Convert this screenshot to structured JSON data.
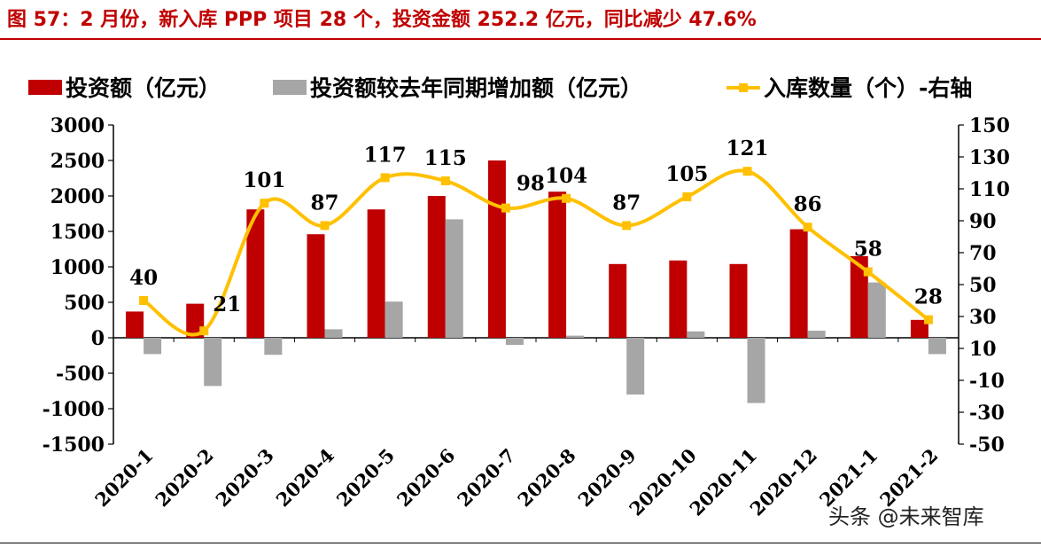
{
  "title": "图 57：2 月份，新入库 PPP 项目 28 个，投资金额 252.2 亿元，同比减少 47.6%",
  "watermark": "头条 @未来智库",
  "colors": {
    "invest": "#c00000",
    "yoy": "#a6a6a6",
    "count": "#ffc000",
    "title": "#c00000"
  },
  "chart_data": {
    "type": "bar",
    "categories": [
      "2020-1",
      "2020-2",
      "2020-3",
      "2020-4",
      "2020-5",
      "2020-6",
      "2020-7",
      "2020-8",
      "2020-9",
      "2020-10",
      "2020-11",
      "2020-12",
      "2021-1",
      "2021-2"
    ],
    "series": [
      {
        "name": "投资额（亿元）",
        "type": "bar",
        "axis": "left",
        "values": [
          370,
          480,
          1810,
          1460,
          1810,
          2000,
          2500,
          2060,
          1040,
          1090,
          1040,
          1530,
          1150,
          252.2
        ]
      },
      {
        "name": "投资额较去年同期增加额（亿元）",
        "type": "bar",
        "axis": "left",
        "values": [
          -230,
          -680,
          -240,
          120,
          510,
          1670,
          -100,
          30,
          -800,
          90,
          -920,
          100,
          780,
          -230
        ]
      },
      {
        "name": "入库数量（个）-右轴",
        "type": "line",
        "axis": "right",
        "values": [
          40,
          21,
          101,
          87,
          117,
          115,
          98,
          104,
          87,
          105,
          121,
          86,
          58,
          28
        ]
      }
    ],
    "left_axis": {
      "ylim": [
        -1500,
        3000
      ],
      "ticks": [
        "3000",
        "2500",
        "2000",
        "1500",
        "1000",
        "500",
        "0",
        "-500",
        "-1000",
        "-1500"
      ]
    },
    "right_axis": {
      "ylim": [
        -50,
        150
      ],
      "ticks": [
        "150",
        "130",
        "110",
        "90",
        "70",
        "50",
        "30",
        "10",
        "-10",
        "-30",
        "-50"
      ]
    },
    "legend": "top",
    "grid": false
  }
}
